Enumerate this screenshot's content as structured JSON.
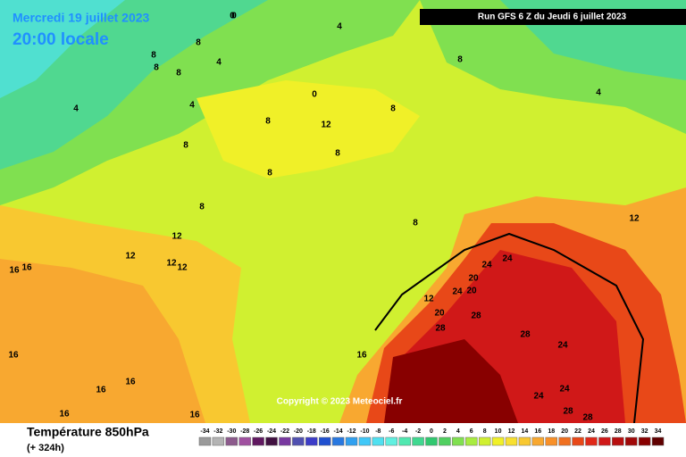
{
  "header": {
    "valid_date": "Mercredi 19 juillet 2023",
    "local_time": "20:00 locale",
    "run": "Run GFS 6 Z du Jeudi 6 juillet 2023"
  },
  "copyright": "Copyright © 2023 Meteociel.fr",
  "footer": {
    "title": "Température 850hPa",
    "lead_time": "(+ 324h)"
  },
  "legend": {
    "ticks": [
      -34,
      -32,
      -30,
      -28,
      -26,
      -24,
      -22,
      -20,
      -18,
      -16,
      -14,
      -12,
      -10,
      -8,
      -6,
      -4,
      -2,
      0,
      2,
      4,
      6,
      8,
      10,
      12,
      14,
      16,
      18,
      20,
      22,
      24,
      26,
      28,
      30,
      32,
      34
    ],
    "colors": [
      "#9a9a9a",
      "#b4b4b4",
      "#8c5a8c",
      "#a050a0",
      "#601860",
      "#401040",
      "#7838a0",
      "#5050b0",
      "#3c3cc8",
      "#2050d0",
      "#2878e0",
      "#30a0f0",
      "#40c8f8",
      "#50e0f0",
      "#60f0e0",
      "#50e8b0",
      "#40d890",
      "#30c870",
      "#50d060",
      "#80e050",
      "#a8ec40",
      "#d0f030",
      "#f0f028",
      "#f8e030",
      "#f8c830",
      "#f8a830",
      "#f89028",
      "#f07020",
      "#e84818",
      "#e02818",
      "#d01818",
      "#b81010",
      "#a00808",
      "#880000",
      "#600000"
    ]
  },
  "contour_labels": [
    0,
    4,
    4,
    4,
    8,
    8,
    8,
    8,
    8,
    12,
    8,
    8,
    8,
    8,
    8,
    8,
    8,
    4,
    4,
    0,
    0,
    12,
    12,
    12,
    12,
    12,
    16,
    16,
    16,
    16,
    16,
    16,
    16,
    12,
    20,
    20,
    20,
    24,
    24,
    24,
    28,
    28,
    28,
    24,
    24,
    24,
    28,
    28,
    16
  ]
}
